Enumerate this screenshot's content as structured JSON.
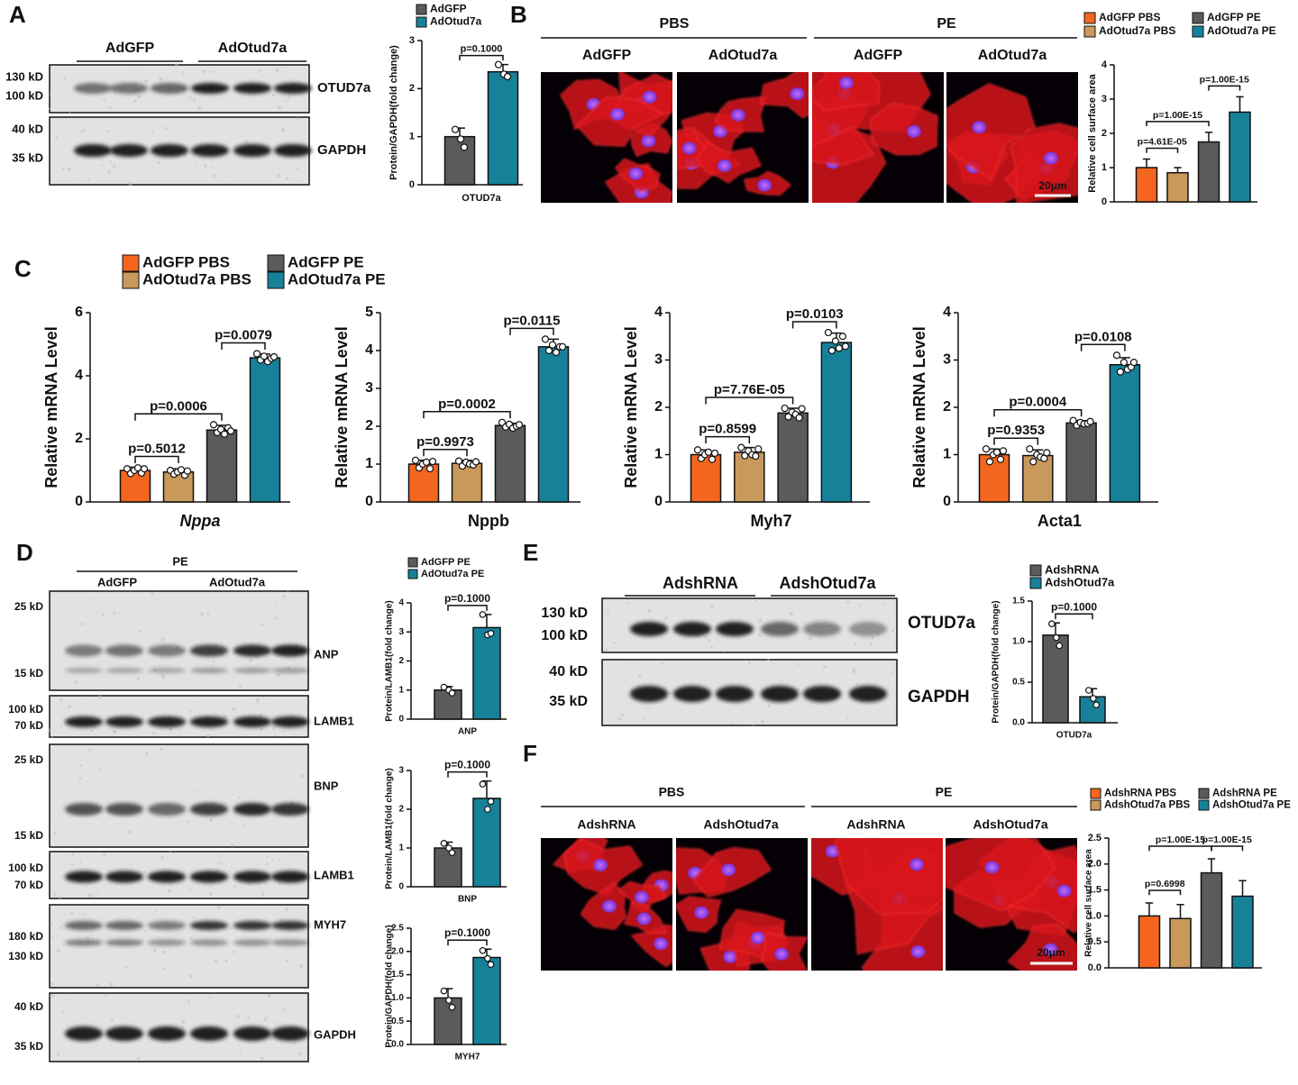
{
  "panels": {
    "A": {
      "letter": "A",
      "groups": [
        "AdGFP",
        "AdOtud7a"
      ],
      "markers": [
        "130 kD",
        "100 kD",
        "40 kD",
        "35 kD"
      ],
      "proteins": [
        "OTUD7a",
        "GAPDH"
      ]
    },
    "B": {
      "letter": "B",
      "treatments": [
        "PBS",
        "PE"
      ],
      "groups": [
        "AdGFP",
        "AdOtud7a",
        "AdGFP",
        "AdOtud7a"
      ],
      "scale_bar": "20μm"
    },
    "C": {
      "letter": "C"
    },
    "D": {
      "letter": "D",
      "treatment": "PE",
      "groups": [
        "AdGFP",
        "AdOtud7a"
      ],
      "markers": [
        "25 kD",
        "15 kD",
        "100 kD",
        "70 kD",
        "25 kD",
        "15 kD",
        "100 kD",
        "70 kD",
        "180 kD",
        "130 kD",
        "40 kD",
        "35 kD"
      ],
      "proteins": [
        "ANP",
        "LAMB1",
        "BNP",
        "LAMB1",
        "MYH7",
        "GAPDH"
      ]
    },
    "E": {
      "letter": "E",
      "groups": [
        "AdshRNA",
        "AdshOtud7a"
      ],
      "markers": [
        "130 kD",
        "100 kD",
        "40 kD",
        "35 kD"
      ],
      "proteins": [
        "OTUD7a",
        "GAPDH"
      ]
    },
    "F": {
      "letter": "F",
      "treatments": [
        "PBS",
        "PE"
      ],
      "groups": [
        "AdshRNA",
        "AdshOtud7a",
        "AdshRNA",
        "AdshOtud7a"
      ],
      "scale_bar": "20μm"
    }
  },
  "chart_data": [
    {
      "type": "bar",
      "ylabel": "Protein/GAPDH(fold change)",
      "categories": [
        "OTUD7a"
      ],
      "ylim": [
        0,
        3
      ],
      "yticks": [
        0,
        1,
        2,
        3
      ],
      "series": [
        {
          "name": "AdGFP",
          "color": "#5b5b5b",
          "values": [
            1.0
          ],
          "errors": [
            0.18
          ],
          "points": [
            1.15,
            0.95,
            0.78
          ]
        },
        {
          "name": "AdOtud7a",
          "color": "#18819a",
          "values": [
            2.35
          ],
          "errors": [
            0.15
          ],
          "points": [
            2.5,
            2.3,
            2.25
          ]
        }
      ],
      "comparisons": [
        {
          "from": 0,
          "to": 1,
          "label": "p=0.1000"
        }
      ]
    },
    {
      "type": "bar",
      "ylabel": "Relative cell surface area",
      "categories": [
        null
      ],
      "ylim": [
        0,
        4
      ],
      "yticks": [
        0,
        1,
        2,
        3,
        4
      ],
      "series": [
        {
          "name": "AdGFP PBS",
          "color": "#f4661f",
          "values": [
            1.0
          ],
          "errors": [
            0.25
          ]
        },
        {
          "name": "AdOtud7a PBS",
          "color": "#c9985b",
          "values": [
            0.85
          ],
          "errors": [
            0.15
          ]
        },
        {
          "name": "AdGFP PE",
          "color": "#5b5b5b",
          "values": [
            1.75
          ],
          "errors": [
            0.28
          ]
        },
        {
          "name": "AdOtud7a PE",
          "color": "#18819a",
          "values": [
            2.62
          ],
          "errors": [
            0.45
          ]
        }
      ],
      "comparisons": [
        {
          "from": 0,
          "to": 1,
          "label": "p=4.61E-05"
        },
        {
          "from": 0,
          "to": 2,
          "label": "p=1.00E-15"
        },
        {
          "from": 2,
          "to": 3,
          "label": "p=1.00E-15"
        }
      ]
    },
    {
      "type": "bar",
      "ylabel": "Relative mRNA Level",
      "categories": [
        "Nppa"
      ],
      "ylim": [
        0,
        6
      ],
      "yticks": [
        0,
        2,
        4,
        6
      ],
      "series": [
        {
          "name": "AdGFP PBS",
          "color": "#f4661f",
          "values": [
            1.0
          ],
          "errors": [
            0.1
          ],
          "points": [
            1.05,
            0.9,
            1.0,
            1.08,
            0.92,
            1.05
          ]
        },
        {
          "name": "AdOtud7a PBS",
          "color": "#c9985b",
          "values": [
            0.95
          ],
          "errors": [
            0.1
          ],
          "points": [
            1.0,
            0.88,
            0.95,
            1.02,
            0.85,
            0.98
          ]
        },
        {
          "name": "AdGFP PE",
          "color": "#5b5b5b",
          "values": [
            2.28
          ],
          "errors": [
            0.15
          ],
          "points": [
            2.45,
            2.2,
            2.3,
            2.15,
            2.35,
            2.25
          ]
        },
        {
          "name": "AdOtud7a PE",
          "color": "#18819a",
          "values": [
            4.57
          ],
          "errors": [
            0.12
          ],
          "points": [
            4.7,
            4.5,
            4.62,
            4.45,
            4.55,
            4.6
          ]
        }
      ],
      "comparisons": [
        {
          "from": 0,
          "to": 1,
          "label": "p=0.5012"
        },
        {
          "from": 0,
          "to": 2,
          "label": "p=0.0006"
        },
        {
          "from": 2,
          "to": 3,
          "label": "p=0.0079"
        }
      ]
    },
    {
      "type": "bar",
      "ylabel": "Relative mRNA Level",
      "categories": [
        "Nppb"
      ],
      "ylim": [
        0,
        5
      ],
      "yticks": [
        0,
        1,
        2,
        3,
        4,
        5
      ],
      "series": [
        {
          "color": "#f4661f",
          "values": [
            1.0
          ],
          "errors": [
            0.1
          ],
          "points": [
            1.1,
            0.9,
            1.0,
            1.05,
            0.88,
            1.07
          ]
        },
        {
          "color": "#c9985b",
          "values": [
            1.02
          ],
          "errors": [
            0.08
          ],
          "points": [
            1.08,
            0.95,
            1.05,
            1.0,
            0.98,
            1.06
          ]
        },
        {
          "color": "#5b5b5b",
          "values": [
            2.02
          ],
          "errors": [
            0.06
          ],
          "points": [
            2.1,
            1.98,
            2.05,
            1.95,
            2.0,
            2.04
          ]
        },
        {
          "color": "#18819a",
          "values": [
            4.1
          ],
          "errors": [
            0.2
          ],
          "points": [
            4.3,
            4.0,
            4.15,
            3.95,
            4.1,
            4.1
          ]
        }
      ],
      "comparisons": [
        {
          "from": 0,
          "to": 1,
          "label": "p=0.9973"
        },
        {
          "from": 0,
          "to": 2,
          "label": "p=0.0002"
        },
        {
          "from": 2,
          "to": 3,
          "label": "p=0.0115"
        }
      ]
    },
    {
      "type": "bar",
      "ylabel": "Relative mRNA Level",
      "categories": [
        "Myh7"
      ],
      "ylim": [
        0,
        4
      ],
      "yticks": [
        0,
        1,
        2,
        3,
        4
      ],
      "series": [
        {
          "color": "#f4661f",
          "values": [
            1.0
          ],
          "errors": [
            0.1
          ],
          "points": [
            1.1,
            0.92,
            1.0,
            1.05,
            0.9,
            1.03
          ]
        },
        {
          "color": "#c9985b",
          "values": [
            1.05
          ],
          "errors": [
            0.1
          ],
          "points": [
            1.15,
            0.98,
            1.08,
            1.0,
            0.97,
            1.12
          ]
        },
        {
          "color": "#5b5b5b",
          "values": [
            1.88
          ],
          "errors": [
            0.1
          ],
          "points": [
            1.98,
            1.8,
            1.9,
            1.85,
            1.78,
            1.97
          ]
        },
        {
          "color": "#18819a",
          "values": [
            3.37
          ],
          "errors": [
            0.2
          ],
          "points": [
            3.58,
            3.2,
            3.4,
            3.25,
            3.5,
            3.29
          ]
        }
      ],
      "comparisons": [
        {
          "from": 0,
          "to": 1,
          "label": "p=0.8599"
        },
        {
          "from": 0,
          "to": 2,
          "label": "p=7.76E-05"
        },
        {
          "from": 2,
          "to": 3,
          "label": "p=0.0103"
        }
      ]
    },
    {
      "type": "bar",
      "ylabel": "Relative mRNA Level",
      "categories": [
        "Acta1"
      ],
      "ylim": [
        0,
        4
      ],
      "yticks": [
        0,
        1,
        2,
        3,
        4
      ],
      "series": [
        {
          "color": "#f4661f",
          "values": [
            1.0
          ],
          "errors": [
            0.12
          ],
          "points": [
            1.12,
            0.85,
            1.0,
            1.05,
            0.9,
            1.08
          ]
        },
        {
          "color": "#c9985b",
          "values": [
            0.98
          ],
          "errors": [
            0.12
          ],
          "points": [
            1.12,
            0.85,
            1.0,
            0.95,
            0.92,
            1.04
          ]
        },
        {
          "color": "#5b5b5b",
          "values": [
            1.67
          ],
          "errors": [
            0.05
          ],
          "points": [
            1.72,
            1.62,
            1.68,
            1.65,
            1.66,
            1.7
          ]
        },
        {
          "color": "#18819a",
          "values": [
            2.9
          ],
          "errors": [
            0.15
          ],
          "points": [
            3.1,
            2.75,
            2.95,
            2.8,
            2.85,
            2.95
          ]
        }
      ],
      "comparisons": [
        {
          "from": 0,
          "to": 1,
          "label": "p=0.9353"
        },
        {
          "from": 0,
          "to": 2,
          "label": "p=0.0004"
        },
        {
          "from": 2,
          "to": 3,
          "label": "p=0.0108"
        }
      ]
    },
    {
      "type": "bar",
      "ylabel": "Protein/LAMB1(fold change)",
      "categories": [
        "ANP"
      ],
      "ylim": [
        0,
        4
      ],
      "yticks": [
        0,
        1,
        2,
        3,
        4
      ],
      "series": [
        {
          "name": "AdGFP PE",
          "color": "#5b5b5b",
          "values": [
            1.0
          ],
          "errors": [
            0.12
          ],
          "points": [
            1.1,
            1.0,
            0.9
          ]
        },
        {
          "name": "AdOtud7a PE",
          "color": "#18819a",
          "values": [
            3.15
          ],
          "errors": [
            0.45
          ],
          "points": [
            3.6,
            2.9,
            2.95
          ]
        }
      ],
      "comparisons": [
        {
          "from": 0,
          "to": 1,
          "label": "p=0.1000"
        }
      ]
    },
    {
      "type": "bar",
      "ylabel": "Protein/LAMB1(fold change)",
      "categories": [
        "BNP"
      ],
      "ylim": [
        0,
        3
      ],
      "yticks": [
        0,
        1,
        2,
        3
      ],
      "series": [
        {
          "color": "#5b5b5b",
          "values": [
            1.0
          ],
          "errors": [
            0.15
          ],
          "points": [
            1.12,
            1.0,
            0.88
          ]
        },
        {
          "color": "#18819a",
          "values": [
            2.28
          ],
          "errors": [
            0.45
          ],
          "points": [
            2.65,
            2.0,
            2.2
          ]
        }
      ],
      "comparisons": [
        {
          "from": 0,
          "to": 1,
          "label": "p=0.1000"
        }
      ]
    },
    {
      "type": "bar",
      "ylabel": "Protein/GAPDH(fold change)",
      "categories": [
        "MYH7"
      ],
      "ylim": [
        0,
        2.5
      ],
      "yticks": [
        {
          "value": 0,
          "label": "0.0"
        },
        0.5,
        {
          "value": 1,
          "label": "1.0"
        },
        1.5,
        {
          "value": 2,
          "label": "2.0"
        },
        2.5
      ],
      "series": [
        {
          "color": "#5b5b5b",
          "values": [
            1.0
          ],
          "errors": [
            0.2
          ],
          "points": [
            1.15,
            0.95,
            0.8
          ]
        },
        {
          "color": "#18819a",
          "values": [
            1.87
          ],
          "errors": [
            0.18
          ],
          "points": [
            2.02,
            1.85,
            1.72
          ]
        }
      ],
      "comparisons": [
        {
          "from": 0,
          "to": 1,
          "label": "p=0.1000"
        }
      ]
    },
    {
      "type": "bar",
      "ylabel": "Protein/GAPDH(fold change)",
      "categories": [
        "OTUD7a"
      ],
      "ylim": [
        0,
        1.5
      ],
      "yticks": [
        {
          "value": 0,
          "label": "0.0"
        },
        0.5,
        {
          "value": 1,
          "label": "1.0"
        },
        1.5
      ],
      "series": [
        {
          "name": "AdshRNA",
          "color": "#5b5b5b",
          "values": [
            1.08
          ],
          "errors": [
            0.15
          ],
          "points": [
            1.22,
            1.05,
            0.95
          ]
        },
        {
          "name": "AdshOtud7a",
          "color": "#18819a",
          "values": [
            0.32
          ],
          "errors": [
            0.1
          ],
          "points": [
            0.4,
            0.3,
            0.22
          ]
        }
      ],
      "comparisons": [
        {
          "from": 0,
          "to": 1,
          "label": "p=0.1000"
        }
      ]
    },
    {
      "type": "bar",
      "ylabel": "Relative cell surface area",
      "categories": [
        null
      ],
      "ylim": [
        0,
        2.5
      ],
      "yticks": [
        {
          "value": 0,
          "label": "0.0"
        },
        0.5,
        {
          "value": 1,
          "label": "1.0"
        },
        1.5,
        {
          "value": 2,
          "label": "2.0"
        },
        2.5
      ],
      "series": [
        {
          "name": "AdshRNA PBS",
          "color": "#f4661f",
          "values": [
            1.0
          ],
          "errors": [
            0.25
          ]
        },
        {
          "name": "AdshOtud7a PBS",
          "color": "#c9985b",
          "values": [
            0.95
          ],
          "errors": [
            0.27
          ]
        },
        {
          "name": "AdshRNA PE",
          "color": "#5b5b5b",
          "values": [
            1.83
          ],
          "errors": [
            0.27
          ]
        },
        {
          "name": "AdshOtud7a PE",
          "color": "#18819a",
          "values": [
            1.38
          ],
          "errors": [
            0.3
          ]
        }
      ],
      "comparisons": [
        {
          "from": 0,
          "to": 1,
          "label": "p=0.6998"
        },
        {
          "from": 0,
          "to": 2,
          "label": "p=1.00E-15"
        },
        {
          "from": 2,
          "to": 3,
          "label": "p=1.00E-15"
        }
      ]
    }
  ]
}
